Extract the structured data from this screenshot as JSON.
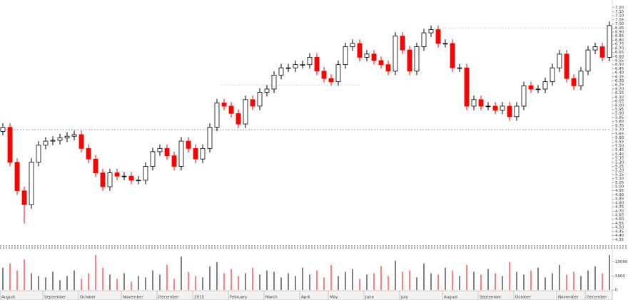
{
  "chart_data": {
    "type": "candlestick",
    "open": [
      5.68,
      5.73,
      5.3,
      4.95,
      4.78,
      5.3,
      5.51,
      5.56,
      5.57,
      5.6,
      5.62,
      5.64,
      5.47,
      5.34,
      5.17,
      5.0,
      5.17,
      5.13,
      5.13,
      5.08,
      5.08,
      5.25,
      5.43,
      5.47,
      5.38,
      5.25,
      5.56,
      5.47,
      5.34,
      5.47,
      5.73,
      6.03,
      5.99,
      5.9,
      5.77,
      6.07,
      5.99,
      6.16,
      6.2,
      6.37,
      6.46,
      6.46,
      6.5,
      6.5,
      6.59,
      6.42,
      6.33,
      6.29,
      6.5,
      6.72,
      6.76,
      6.59,
      6.63,
      6.55,
      6.5,
      6.42,
      6.85,
      6.68,
      6.42,
      6.72,
      6.89,
      6.93,
      6.76,
      6.76,
      6.46,
      6.46,
      5.99,
      6.07,
      5.99,
      5.99,
      5.94,
      5.99,
      5.86,
      5.99,
      6.24,
      6.2,
      6.2,
      6.29,
      6.46,
      6.63,
      6.33,
      6.24,
      6.42,
      6.68,
      6.72,
      6.59
    ],
    "high": [
      5.78,
      5.78,
      5.35,
      5.0,
      5.35,
      5.56,
      5.61,
      5.62,
      5.65,
      5.67,
      5.69,
      5.69,
      5.52,
      5.39,
      5.22,
      5.22,
      5.22,
      5.18,
      5.18,
      5.13,
      5.3,
      5.48,
      5.52,
      5.52,
      5.43,
      5.61,
      5.61,
      5.52,
      5.52,
      5.78,
      6.08,
      6.08,
      6.04,
      5.95,
      6.12,
      6.12,
      6.21,
      6.25,
      6.42,
      6.51,
      6.51,
      6.55,
      6.55,
      6.64,
      6.64,
      6.47,
      6.38,
      6.55,
      6.77,
      6.81,
      6.81,
      6.68,
      6.68,
      6.6,
      6.55,
      6.9,
      6.9,
      6.73,
      6.77,
      6.94,
      6.98,
      6.98,
      6.81,
      6.81,
      6.51,
      6.51,
      6.12,
      6.12,
      6.04,
      6.04,
      6.04,
      6.04,
      6.04,
      6.29,
      6.29,
      6.25,
      6.34,
      6.51,
      6.68,
      6.68,
      6.38,
      6.47,
      6.73,
      6.77,
      6.77,
      7.03
    ],
    "low": [
      5.63,
      5.25,
      4.9,
      4.55,
      4.73,
      5.25,
      5.46,
      5.51,
      5.52,
      5.55,
      5.57,
      5.42,
      5.29,
      5.12,
      4.95,
      4.95,
      5.08,
      5.08,
      5.03,
      5.03,
      5.03,
      5.2,
      5.38,
      5.33,
      5.2,
      5.2,
      5.42,
      5.29,
      5.29,
      5.42,
      5.68,
      5.94,
      5.85,
      5.72,
      5.72,
      5.94,
      5.94,
      6.11,
      6.15,
      6.32,
      6.41,
      6.41,
      6.45,
      6.45,
      6.37,
      6.28,
      6.24,
      6.24,
      6.45,
      6.67,
      6.54,
      6.54,
      6.5,
      6.45,
      6.37,
      6.37,
      6.63,
      6.37,
      6.37,
      6.67,
      6.84,
      6.71,
      6.71,
      6.41,
      6.41,
      5.94,
      5.94,
      5.94,
      5.94,
      5.89,
      5.89,
      5.81,
      5.81,
      5.94,
      6.15,
      6.15,
      6.15,
      6.24,
      6.41,
      6.28,
      6.19,
      6.19,
      6.37,
      6.63,
      6.54,
      6.54
    ],
    "close": [
      5.73,
      5.3,
      4.95,
      4.78,
      5.3,
      5.51,
      5.56,
      5.57,
      5.6,
      5.62,
      5.64,
      5.47,
      5.34,
      5.17,
      5.0,
      5.17,
      5.13,
      5.13,
      5.08,
      5.08,
      5.25,
      5.43,
      5.47,
      5.38,
      5.25,
      5.56,
      5.47,
      5.34,
      5.47,
      5.73,
      6.03,
      5.99,
      5.9,
      5.77,
      6.07,
      5.99,
      6.16,
      6.2,
      6.37,
      6.46,
      6.46,
      6.5,
      6.5,
      6.59,
      6.42,
      6.33,
      6.29,
      6.5,
      6.72,
      6.76,
      6.59,
      6.63,
      6.55,
      6.5,
      6.42,
      6.85,
      6.68,
      6.42,
      6.72,
      6.89,
      6.93,
      6.76,
      6.76,
      6.46,
      6.46,
      5.99,
      6.07,
      5.99,
      5.99,
      5.94,
      5.99,
      5.86,
      5.99,
      6.24,
      6.2,
      6.2,
      6.29,
      6.46,
      6.63,
      6.33,
      6.24,
      6.42,
      6.68,
      6.72,
      6.59,
      6.98
    ],
    "volume": [
      8000,
      9500,
      7000,
      11000,
      6000,
      5000,
      4500,
      6500,
      3500,
      5000,
      7000,
      4000,
      6000,
      12500,
      8000,
      5500,
      4000,
      6000,
      3000,
      5000,
      4500,
      7000,
      5500,
      9000,
      4000,
      12000,
      6500,
      5000,
      4500,
      8500,
      10000,
      6000,
      7500,
      5000,
      6000,
      8000,
      5500,
      7000,
      6500,
      4500,
      6000,
      5000,
      8000,
      5500,
      7000,
      4500,
      9000,
      5000,
      6500,
      7500,
      4000,
      5500,
      6000,
      8500,
      5000,
      10500,
      6500,
      7000,
      4500,
      9500,
      6000,
      5500,
      8000,
      7000,
      5000,
      9000,
      6500,
      5500,
      7500,
      6000,
      5000,
      10000,
      6500,
      5500,
      7000,
      8000,
      4500,
      6000,
      9000,
      5500,
      6500,
      5000,
      7000,
      8500,
      6000,
      12500
    ],
    "up_color": "#000000",
    "down_color": "#ff0000",
    "ylim": [
      4.3,
      7.25
    ],
    "yticks": [
      {
        "value": 7.2,
        "label": "7.20"
      },
      {
        "value": 7.15,
        "label": "7.15"
      },
      {
        "value": 7.1,
        "label": "7.10"
      },
      {
        "value": 7.05,
        "label": "7.05"
      },
      {
        "value": 7.0,
        "label": "7.00"
      },
      {
        "value": 6.95,
        "label": "6.95"
      },
      {
        "value": 6.9,
        "label": "6.90"
      },
      {
        "value": 6.85,
        "label": "6.85"
      },
      {
        "value": 6.8,
        "label": "6.80"
      },
      {
        "value": 6.75,
        "label": "6.75"
      },
      {
        "value": 6.7,
        "label": "6.70"
      },
      {
        "value": 6.65,
        "label": "6.65"
      },
      {
        "value": 6.6,
        "label": "6.60"
      },
      {
        "value": 6.55,
        "label": "6.55"
      },
      {
        "value": 6.5,
        "label": "6.50"
      },
      {
        "value": 6.45,
        "label": "6.45"
      },
      {
        "value": 6.4,
        "label": "6.40"
      },
      {
        "value": 6.35,
        "label": "6.35"
      },
      {
        "value": 6.3,
        "label": "6.30"
      },
      {
        "value": 6.25,
        "label": "6.25"
      },
      {
        "value": 6.2,
        "label": "6.20"
      },
      {
        "value": 6.15,
        "label": "6.15"
      },
      {
        "value": 6.1,
        "label": "6.10"
      },
      {
        "value": 6.05,
        "label": "6.05"
      },
      {
        "value": 6.0,
        "label": "6.00"
      },
      {
        "value": 5.95,
        "label": "5.95"
      },
      {
        "value": 5.9,
        "label": "5.90"
      },
      {
        "value": 5.85,
        "label": "5.85"
      },
      {
        "value": 5.8,
        "label": "5.80"
      },
      {
        "value": 5.75,
        "label": "5.75"
      },
      {
        "value": 5.7,
        "label": "5.70"
      },
      {
        "value": 5.65,
        "label": "5.65"
      },
      {
        "value": 5.6,
        "label": "5.60"
      },
      {
        "value": 5.55,
        "label": "5.55"
      },
      {
        "value": 5.5,
        "label": "5.50"
      },
      {
        "value": 5.45,
        "label": "5.45"
      },
      {
        "value": 5.4,
        "label": "5.40"
      },
      {
        "value": 5.35,
        "label": "5.35"
      },
      {
        "value": 5.3,
        "label": "5.30"
      },
      {
        "value": 5.25,
        "label": "5.25"
      },
      {
        "value": 5.2,
        "label": "5.20"
      },
      {
        "value": 5.15,
        "label": "5.15"
      },
      {
        "value": 5.1,
        "label": "5.10"
      },
      {
        "value": 5.05,
        "label": "5.05"
      },
      {
        "value": 5.0,
        "label": "5.00"
      },
      {
        "value": 4.95,
        "label": "4.95"
      },
      {
        "value": 4.9,
        "label": "4.90"
      },
      {
        "value": 4.85,
        "label": "4.85"
      },
      {
        "value": 4.8,
        "label": "4.80"
      },
      {
        "value": 4.75,
        "label": "4.75"
      },
      {
        "value": 4.7,
        "label": "4.70"
      },
      {
        "value": 4.65,
        "label": "4.65"
      },
      {
        "value": 4.6,
        "label": "4.60"
      },
      {
        "value": 4.55,
        "label": "4.55"
      },
      {
        "value": 4.5,
        "label": "4.50"
      },
      {
        "value": 4.45,
        "label": "4.45"
      },
      {
        "value": 4.4,
        "label": "4.40"
      },
      {
        "value": 4.35,
        "label": "4.35"
      }
    ],
    "hlines": [
      {
        "value": 5.7,
        "from": 0,
        "to": 85
      },
      {
        "value": 6.95,
        "from": 60,
        "to": 85
      },
      {
        "value": 6.25,
        "from": 31,
        "to": 50
      }
    ],
    "vlim": [
      0,
      14000
    ],
    "vticks": [
      10000,
      5000,
      0
    ],
    "x_labels": [
      {
        "value": 0,
        "label": "August"
      },
      {
        "value": 6,
        "label": "September"
      },
      {
        "value": 11,
        "label": "October"
      },
      {
        "value": 17,
        "label": "November"
      },
      {
        "value": 22,
        "label": "December"
      },
      {
        "value": 27,
        "label": "2015"
      },
      {
        "value": 32,
        "label": "February"
      },
      {
        "value": 37,
        "label": "March"
      },
      {
        "value": 42,
        "label": "April"
      },
      {
        "value": 46,
        "label": "May"
      },
      {
        "value": 51,
        "label": "June"
      },
      {
        "value": 56,
        "label": "July"
      },
      {
        "value": 62,
        "label": "August"
      },
      {
        "value": 67,
        "label": "September"
      },
      {
        "value": 72,
        "label": "October"
      },
      {
        "value": 78,
        "label": "November"
      },
      {
        "value": 82,
        "label": "December"
      }
    ]
  }
}
